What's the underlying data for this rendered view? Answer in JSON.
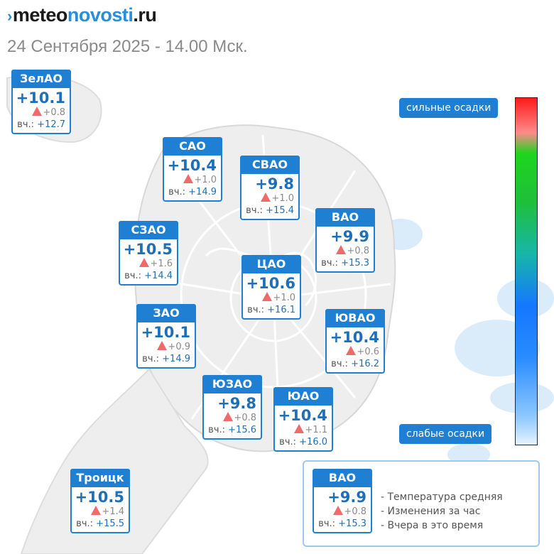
{
  "brand": {
    "mark": "›",
    "part1": "meteo",
    "part2": "novosti",
    "part3": ".ru"
  },
  "subtitle": "24 Сентября 2025 - 14.00 Мск.",
  "yesterday_prefix": "вч.:",
  "districts": [
    {
      "name": "ЗелАО",
      "temp": "+10.1",
      "delta": "+0.8",
      "yesterday": "+12.7"
    },
    {
      "name": "САО",
      "temp": "+10.4",
      "delta": "+1.0",
      "yesterday": "+14.9"
    },
    {
      "name": "СВАО",
      "temp": "+9.8",
      "delta": "+1.0",
      "yesterday": "+15.4"
    },
    {
      "name": "ВАО",
      "temp": "+9.9",
      "delta": "+0.8",
      "yesterday": "+15.3"
    },
    {
      "name": "СЗАО",
      "temp": "+10.5",
      "delta": "+1.6",
      "yesterday": "+14.4"
    },
    {
      "name": "ЦАО",
      "temp": "+10.6",
      "delta": "+1.0",
      "yesterday": "+16.1"
    },
    {
      "name": "ЗАО",
      "temp": "+10.1",
      "delta": "+0.9",
      "yesterday": "+14.9"
    },
    {
      "name": "ЮВАО",
      "temp": "+10.4",
      "delta": "+0.6",
      "yesterday": "+16.2"
    },
    {
      "name": "ЮЗАО",
      "temp": "+9.8",
      "delta": "+0.8",
      "yesterday": "+15.6"
    },
    {
      "name": "ЮАО",
      "temp": "+10.4",
      "delta": "+1.1",
      "yesterday": "+16.0"
    },
    {
      "name": "Троицк",
      "temp": "+10.5",
      "delta": "+1.4",
      "yesterday": "+15.5"
    }
  ],
  "scale": {
    "top_label": "сильные осадки",
    "bottom_label": "слабые осадки"
  },
  "legend": {
    "sample": {
      "name": "ВАО",
      "temp": "+9.9",
      "delta": "+0.8",
      "yesterday": "+15.3"
    },
    "items": [
      "- Температура средняя",
      "- Изменения за час",
      "- Вчера в это время"
    ]
  },
  "colors": {
    "accent": "#1f7fd3",
    "temp_text": "#1f6fb8",
    "rise_triangle": "#ef6a6a"
  }
}
